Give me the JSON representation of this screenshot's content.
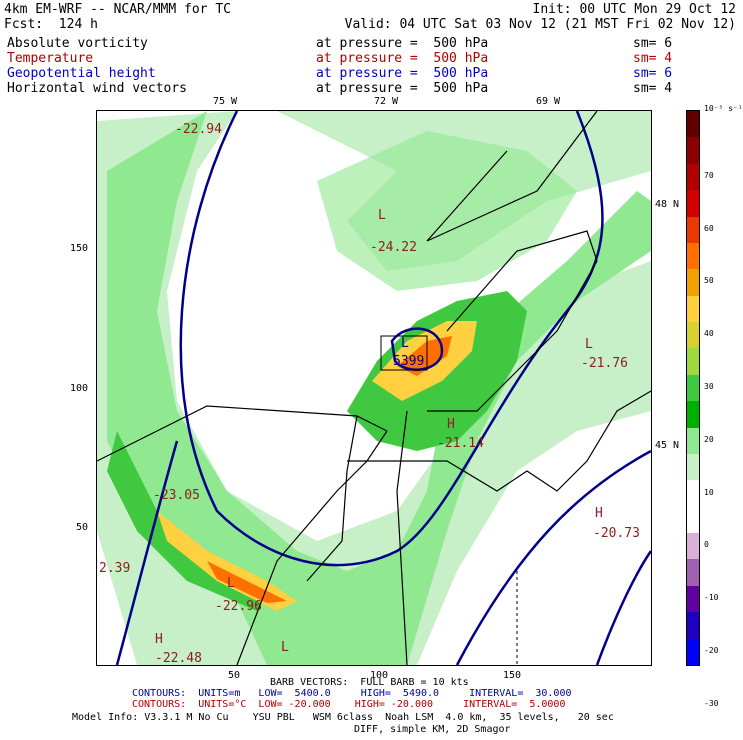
{
  "header": {
    "line1_left": "4km EM-WRF -- NCAR/MMM for TC",
    "line1_right": "Init: 00 UTC Mon 29 Oct 12",
    "line2_left": "Fcst:  124 h",
    "line2_right": "Valid: 04 UTC Sat 03 Nov 12 (21 MST Fri 02 Nov 12)"
  },
  "fields": [
    {
      "name": "Absolute vorticity",
      "level": "at pressure =  500 hPa",
      "sm": "sm= 6",
      "color": "#000000"
    },
    {
      "name": "Temperature",
      "level": "at pressure =  500 hPa",
      "sm": "sm= 4",
      "color": "#b00000"
    },
    {
      "name": "Geopotential height",
      "level": "at pressure =  500 hPa",
      "sm": "sm= 6",
      "color": "#0000c0"
    },
    {
      "name": "Horizontal wind vectors",
      "level": "at pressure =  500 hPa",
      "sm": "sm= 4",
      "color": "#000000"
    }
  ],
  "map": {
    "lon_labels": [
      "75 W",
      "72 W",
      "69 W"
    ],
    "lat_labels": [
      "48 N",
      "45 N"
    ],
    "y_ticks": [
      "150",
      "100",
      "50"
    ],
    "x_ticks": [
      "50",
      "100",
      "150"
    ],
    "temp_labels": [
      "-22.94",
      "-24.22",
      "-21.76",
      "-21.14",
      "-23.05",
      "-20.73",
      "2.39",
      "-22.96",
      "-22.48"
    ],
    "letters": [
      "L",
      "L",
      "L",
      "H",
      "L",
      "H",
      "L",
      "H"
    ],
    "height_label": "5399"
  },
  "colorbar": {
    "unit": "10⁻⁵ s⁻¹",
    "labels": [
      "70",
      "60",
      "50",
      "40",
      "30",
      "20",
      "10",
      "0",
      "-10",
      "-20",
      "-30"
    ],
    "colors": [
      "#600000",
      "#8b0000",
      "#b00000",
      "#d40000",
      "#e83a00",
      "#ff7000",
      "#f0a000",
      "#ffd040",
      "#d8d030",
      "#a0d840",
      "#40c840",
      "#00b000",
      "#90e890",
      "#c8f0c8",
      "#ffffff",
      "#ffffff",
      "#d8b0d8",
      "#a060b0",
      "#6000a0",
      "#2000c0",
      "#0000ff"
    ]
  },
  "footer": {
    "barb": "BARB VECTORS:  FULL BARB = 10 kts",
    "contours1": "CONTOURS:  UNITS=m   LOW=  5400.0     HIGH=  5490.0     INTERVAL=  30.000",
    "contours2": "CONTOURS:  UNITS=°C  LOW= -20.000    HIGH= -20.000     INTERVAL=  5.0000",
    "model1": "Model Info: V3.3.1 M No Cu    YSU PBL   WSM 6class  Noah LSM  4.0 km,  35 levels,   20 sec",
    "model2": "DIFF, simple KM, 2D Smagor",
    "c1color": "#0000a0",
    "c2color": "#b00000"
  }
}
